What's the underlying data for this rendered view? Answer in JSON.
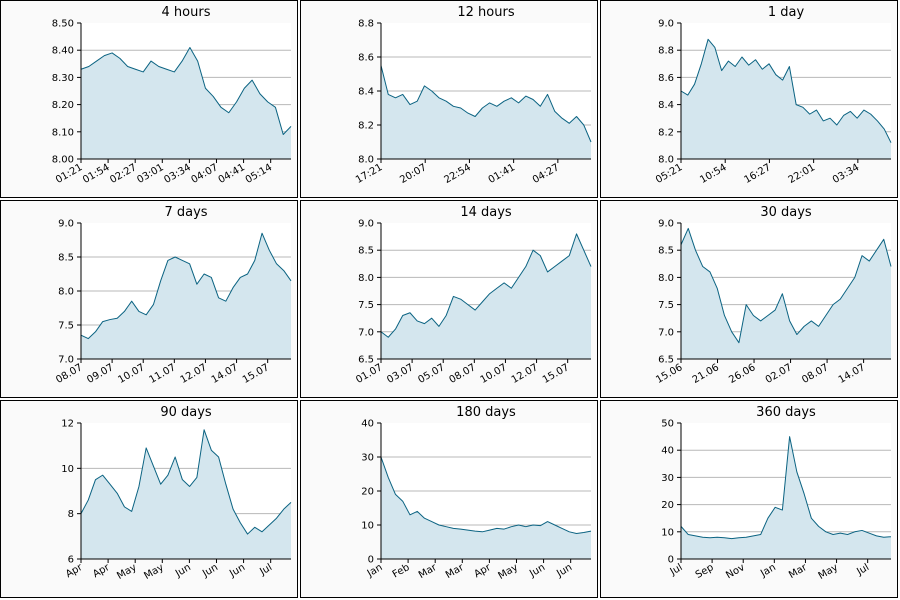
{
  "colors": {
    "line": "#0b6382",
    "fill": "#d4e6ee",
    "grid": "#b8b8b8",
    "panel_bg": "#fafafa",
    "plot_bg": "#ffffff"
  },
  "chart_data": [
    {
      "type": "area",
      "title": "4 hours",
      "xlabel": "",
      "ylabel": "",
      "grid": "horizontal",
      "ylim": [
        8.0,
        8.5
      ],
      "yticks": [
        "8.00",
        "8.10",
        "8.20",
        "8.30",
        "8.40",
        "8.50"
      ],
      "xticks": [
        "01:21",
        "01:54",
        "02:27",
        "03:01",
        "03:34",
        "04:07",
        "04:41",
        "05:14"
      ],
      "series": [
        {
          "values": [
            8.33,
            8.34,
            8.36,
            8.38,
            8.39,
            8.37,
            8.34,
            8.33,
            8.32,
            8.36,
            8.34,
            8.33,
            8.32,
            8.36,
            8.41,
            8.36,
            8.26,
            8.23,
            8.19,
            8.17,
            8.21,
            8.26,
            8.29,
            8.24,
            8.21,
            8.19,
            8.09,
            8.12
          ]
        }
      ]
    },
    {
      "type": "area",
      "title": "12 hours",
      "xlabel": "",
      "ylabel": "",
      "grid": "horizontal",
      "ylim": [
        8.0,
        8.8
      ],
      "yticks": [
        "8.0",
        "8.2",
        "8.4",
        "8.6",
        "8.8"
      ],
      "xticks": [
        "17:21",
        "20:07",
        "22:54",
        "01:41",
        "04:27"
      ],
      "series": [
        {
          "values": [
            8.55,
            8.38,
            8.36,
            8.38,
            8.32,
            8.34,
            8.43,
            8.4,
            8.36,
            8.34,
            8.31,
            8.3,
            8.27,
            8.25,
            8.3,
            8.33,
            8.31,
            8.34,
            8.36,
            8.33,
            8.37,
            8.35,
            8.31,
            8.38,
            8.28,
            8.24,
            8.21,
            8.25,
            8.2,
            8.1
          ]
        }
      ]
    },
    {
      "type": "area",
      "title": "1 day",
      "xlabel": "",
      "ylabel": "",
      "grid": "horizontal",
      "ylim": [
        8.0,
        9.0
      ],
      "yticks": [
        "8.0",
        "8.2",
        "8.4",
        "8.6",
        "8.8",
        "9.0"
      ],
      "xticks": [
        "05:21",
        "10:54",
        "16:27",
        "22:01",
        "03:34"
      ],
      "series": [
        {
          "values": [
            8.5,
            8.47,
            8.55,
            8.7,
            8.88,
            8.82,
            8.65,
            8.72,
            8.68,
            8.75,
            8.69,
            8.73,
            8.66,
            8.7,
            8.62,
            8.58,
            8.68,
            8.4,
            8.38,
            8.33,
            8.36,
            8.28,
            8.3,
            8.25,
            8.32,
            8.35,
            8.3,
            8.36,
            8.33,
            8.28,
            8.22,
            8.12
          ]
        }
      ]
    },
    {
      "type": "area",
      "title": "7 days",
      "xlabel": "",
      "ylabel": "",
      "grid": "horizontal",
      "ylim": [
        7.0,
        9.0
      ],
      "yticks": [
        "7.0",
        "7.5",
        "8.0",
        "8.5",
        "9.0"
      ],
      "xticks": [
        "08.07",
        "09.07",
        "10.07",
        "11.07",
        "12.07",
        "14.07",
        "15.07"
      ],
      "series": [
        {
          "values": [
            7.35,
            7.3,
            7.4,
            7.55,
            7.58,
            7.6,
            7.7,
            7.85,
            7.7,
            7.65,
            7.8,
            8.15,
            8.45,
            8.5,
            8.45,
            8.4,
            8.1,
            8.25,
            8.2,
            7.9,
            7.85,
            8.05,
            8.2,
            8.25,
            8.45,
            8.85,
            8.6,
            8.4,
            8.3,
            8.15
          ]
        }
      ]
    },
    {
      "type": "area",
      "title": "14 days",
      "xlabel": "",
      "ylabel": "",
      "grid": "horizontal",
      "ylim": [
        6.5,
        9.0
      ],
      "yticks": [
        "6.5",
        "7.0",
        "7.5",
        "8.0",
        "8.5",
        "9.0"
      ],
      "xticks": [
        "01.07",
        "03.07",
        "05.07",
        "08.07",
        "10.07",
        "12.07",
        "15.07"
      ],
      "series": [
        {
          "values": [
            7.0,
            6.9,
            7.05,
            7.3,
            7.35,
            7.2,
            7.15,
            7.25,
            7.1,
            7.3,
            7.65,
            7.6,
            7.5,
            7.4,
            7.55,
            7.7,
            7.8,
            7.9,
            7.8,
            8.0,
            8.2,
            8.5,
            8.4,
            8.1,
            8.2,
            8.3,
            8.4,
            8.8,
            8.5,
            8.2
          ]
        }
      ]
    },
    {
      "type": "area",
      "title": "30 days",
      "xlabel": "",
      "ylabel": "",
      "grid": "horizontal",
      "ylim": [
        6.5,
        9.0
      ],
      "yticks": [
        "6.5",
        "7.0",
        "7.5",
        "8.0",
        "8.5",
        "9.0"
      ],
      "xticks": [
        "15.06",
        "21.06",
        "26.06",
        "02.07",
        "08.07",
        "14.07"
      ],
      "series": [
        {
          "values": [
            8.6,
            8.9,
            8.5,
            8.2,
            8.1,
            7.8,
            7.3,
            7.0,
            6.8,
            7.5,
            7.3,
            7.2,
            7.3,
            7.4,
            7.7,
            7.2,
            6.95,
            7.1,
            7.2,
            7.1,
            7.3,
            7.5,
            7.6,
            7.8,
            8.0,
            8.4,
            8.3,
            8.5,
            8.7,
            8.2
          ]
        }
      ]
    },
    {
      "type": "area",
      "title": "90 days",
      "xlabel": "",
      "ylabel": "",
      "grid": "horizontal",
      "ylim": [
        6,
        12
      ],
      "yticks": [
        "6",
        "8",
        "10",
        "12"
      ],
      "xticks": [
        "Apr",
        "Apr",
        "May",
        "May",
        "Jun",
        "Jun",
        "Jun",
        "Jul"
      ],
      "series": [
        {
          "values": [
            8.0,
            8.6,
            9.5,
            9.7,
            9.3,
            8.9,
            8.3,
            8.1,
            9.2,
            10.9,
            10.1,
            9.3,
            9.7,
            10.5,
            9.5,
            9.2,
            9.6,
            11.7,
            10.8,
            10.5,
            9.3,
            8.2,
            7.6,
            7.1,
            7.4,
            7.2,
            7.5,
            7.8,
            8.2,
            8.5
          ]
        }
      ]
    },
    {
      "type": "area",
      "title": "180 days",
      "xlabel": "",
      "ylabel": "",
      "grid": "horizontal",
      "ylim": [
        0,
        40
      ],
      "yticks": [
        "0",
        "10",
        "20",
        "30",
        "40"
      ],
      "xticks": [
        "Jan",
        "Feb",
        "Mar",
        "Mar",
        "Apr",
        "May",
        "Jun",
        "Jun"
      ],
      "series": [
        {
          "values": [
            30.0,
            24.0,
            19.0,
            17.0,
            13.0,
            14.0,
            12.0,
            11.0,
            10.0,
            9.5,
            9.0,
            8.8,
            8.5,
            8.2,
            8.0,
            8.5,
            9.0,
            8.8,
            9.5,
            10.0,
            9.5,
            10.0,
            9.8,
            11.0,
            10.0,
            9.0,
            8.0,
            7.5,
            7.8,
            8.2
          ]
        }
      ]
    },
    {
      "type": "area",
      "title": "360 days",
      "xlabel": "",
      "ylabel": "",
      "grid": "horizontal",
      "ylim": [
        0,
        50
      ],
      "yticks": [
        "0",
        "10",
        "20",
        "30",
        "40",
        "50"
      ],
      "xticks": [
        "Jul",
        "Sep",
        "Nov",
        "Jan",
        "Mar",
        "May",
        "Jul"
      ],
      "series": [
        {
          "values": [
            12.0,
            9.0,
            8.5,
            8.0,
            7.8,
            8.0,
            7.8,
            7.5,
            7.8,
            8.0,
            8.5,
            9.0,
            15.0,
            19.0,
            18.0,
            45.0,
            32.0,
            24.0,
            15.0,
            12.0,
            10.0,
            9.0,
            9.5,
            9.0,
            10.0,
            10.5,
            9.5,
            8.5,
            8.0,
            8.2
          ]
        }
      ]
    }
  ]
}
